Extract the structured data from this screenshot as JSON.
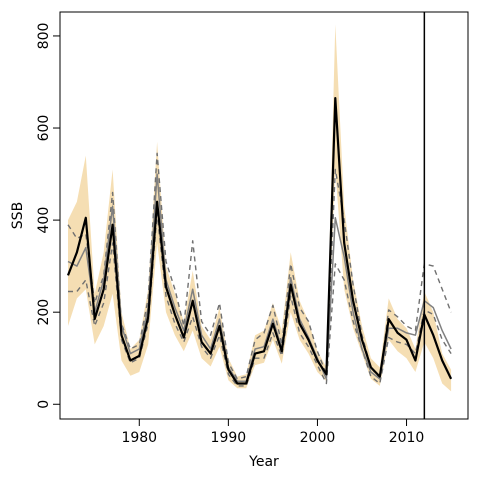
{
  "chart_data": {
    "type": "line",
    "title": "",
    "xlabel": "Year",
    "ylabel": "SSB",
    "xlim": [
      1971.1,
      2016.9
    ],
    "ylim": [
      -32,
      852
    ],
    "x_ticks": [
      1980,
      1990,
      2000,
      2010
    ],
    "y_ticks": [
      0,
      200,
      400,
      600,
      800
    ],
    "grid": false,
    "legend": "none",
    "vline_x": 2012,
    "colors": {
      "band": "#f5deb3",
      "main": "#000000",
      "gray": "#808080",
      "dashed": "#707070"
    },
    "x": [
      1972,
      1973,
      1974,
      1975,
      1976,
      1977,
      1978,
      1979,
      1980,
      1981,
      1982,
      1983,
      1984,
      1985,
      1986,
      1987,
      1988,
      1989,
      1990,
      1991,
      1992,
      1993,
      1994,
      1995,
      1996,
      1997,
      1998,
      1999,
      2000,
      2001,
      2002,
      2003,
      2004,
      2005,
      2006,
      2007,
      2008,
      2009,
      2010,
      2011,
      2012,
      2013,
      2014,
      2015
    ],
    "band_lower": [
      170,
      230,
      250,
      130,
      170,
      240,
      95,
      62,
      70,
      130,
      350,
      200,
      150,
      115,
      160,
      100,
      82,
      125,
      52,
      35,
      35,
      85,
      90,
      140,
      88,
      200,
      140,
      110,
      70,
      50,
      510,
      250,
      165,
      110,
      55,
      40,
      140,
      115,
      100,
      70,
      135,
      100,
      45,
      28
    ],
    "band_upper": [
      400,
      440,
      540,
      240,
      330,
      510,
      200,
      120,
      140,
      250,
      570,
      300,
      240,
      180,
      290,
      170,
      140,
      210,
      100,
      60,
      65,
      150,
      160,
      220,
      160,
      330,
      225,
      180,
      115,
      80,
      825,
      430,
      270,
      170,
      100,
      80,
      230,
      185,
      165,
      120,
      245,
      200,
      110,
      75
    ],
    "series": [
      {
        "name": "",
        "style": "solid-black",
        "values": [
          280,
          330,
          405,
          185,
          250,
          390,
          150,
          95,
          105,
          190,
          440,
          255,
          195,
          145,
          225,
          135,
          110,
          170,
          75,
          45,
          45,
          110,
          115,
          175,
          115,
          260,
          175,
          140,
          95,
          65,
          665,
          350,
          225,
          140,
          80,
          60,
          185,
          155,
          140,
          95,
          195,
          150,
          95,
          55
        ]
      },
      {
        "name": "",
        "style": "solid-gray",
        "values": [
          310,
          300,
          340,
          200,
          270,
          430,
          170,
          110,
          120,
          210,
          500,
          270,
          210,
          160,
          250,
          150,
          120,
          185,
          80,
          50,
          50,
          120,
          125,
          185,
          120,
          275,
          185,
          145,
          100,
          55,
          405,
          320,
          200,
          120,
          70,
          55,
          165,
          165,
          155,
          150,
          225,
          210,
          160,
          120
        ]
      },
      {
        "name": "",
        "style": "dashed-upper",
        "values": [
          390,
          360,
          370,
          220,
          280,
          460,
          175,
          120,
          130,
          230,
          545,
          310,
          250,
          170,
          355,
          180,
          150,
          220,
          90,
          55,
          60,
          140,
          155,
          215,
          130,
          305,
          210,
          180,
          115,
          65,
          510,
          400,
          260,
          150,
          80,
          55,
          205,
          190,
          170,
          160,
          305,
          300,
          250,
          200
        ]
      },
      {
        "name": "",
        "style": "dashed-lower",
        "values": [
          245,
          245,
          270,
          170,
          220,
          350,
          140,
          90,
          100,
          175,
          415,
          235,
          175,
          135,
          190,
          125,
          100,
          150,
          65,
          40,
          40,
          100,
          100,
          155,
          105,
          235,
          155,
          125,
          85,
          45,
          305,
          270,
          180,
          120,
          60,
          45,
          145,
          135,
          130,
          110,
          205,
          195,
          140,
          110
        ]
      }
    ]
  }
}
